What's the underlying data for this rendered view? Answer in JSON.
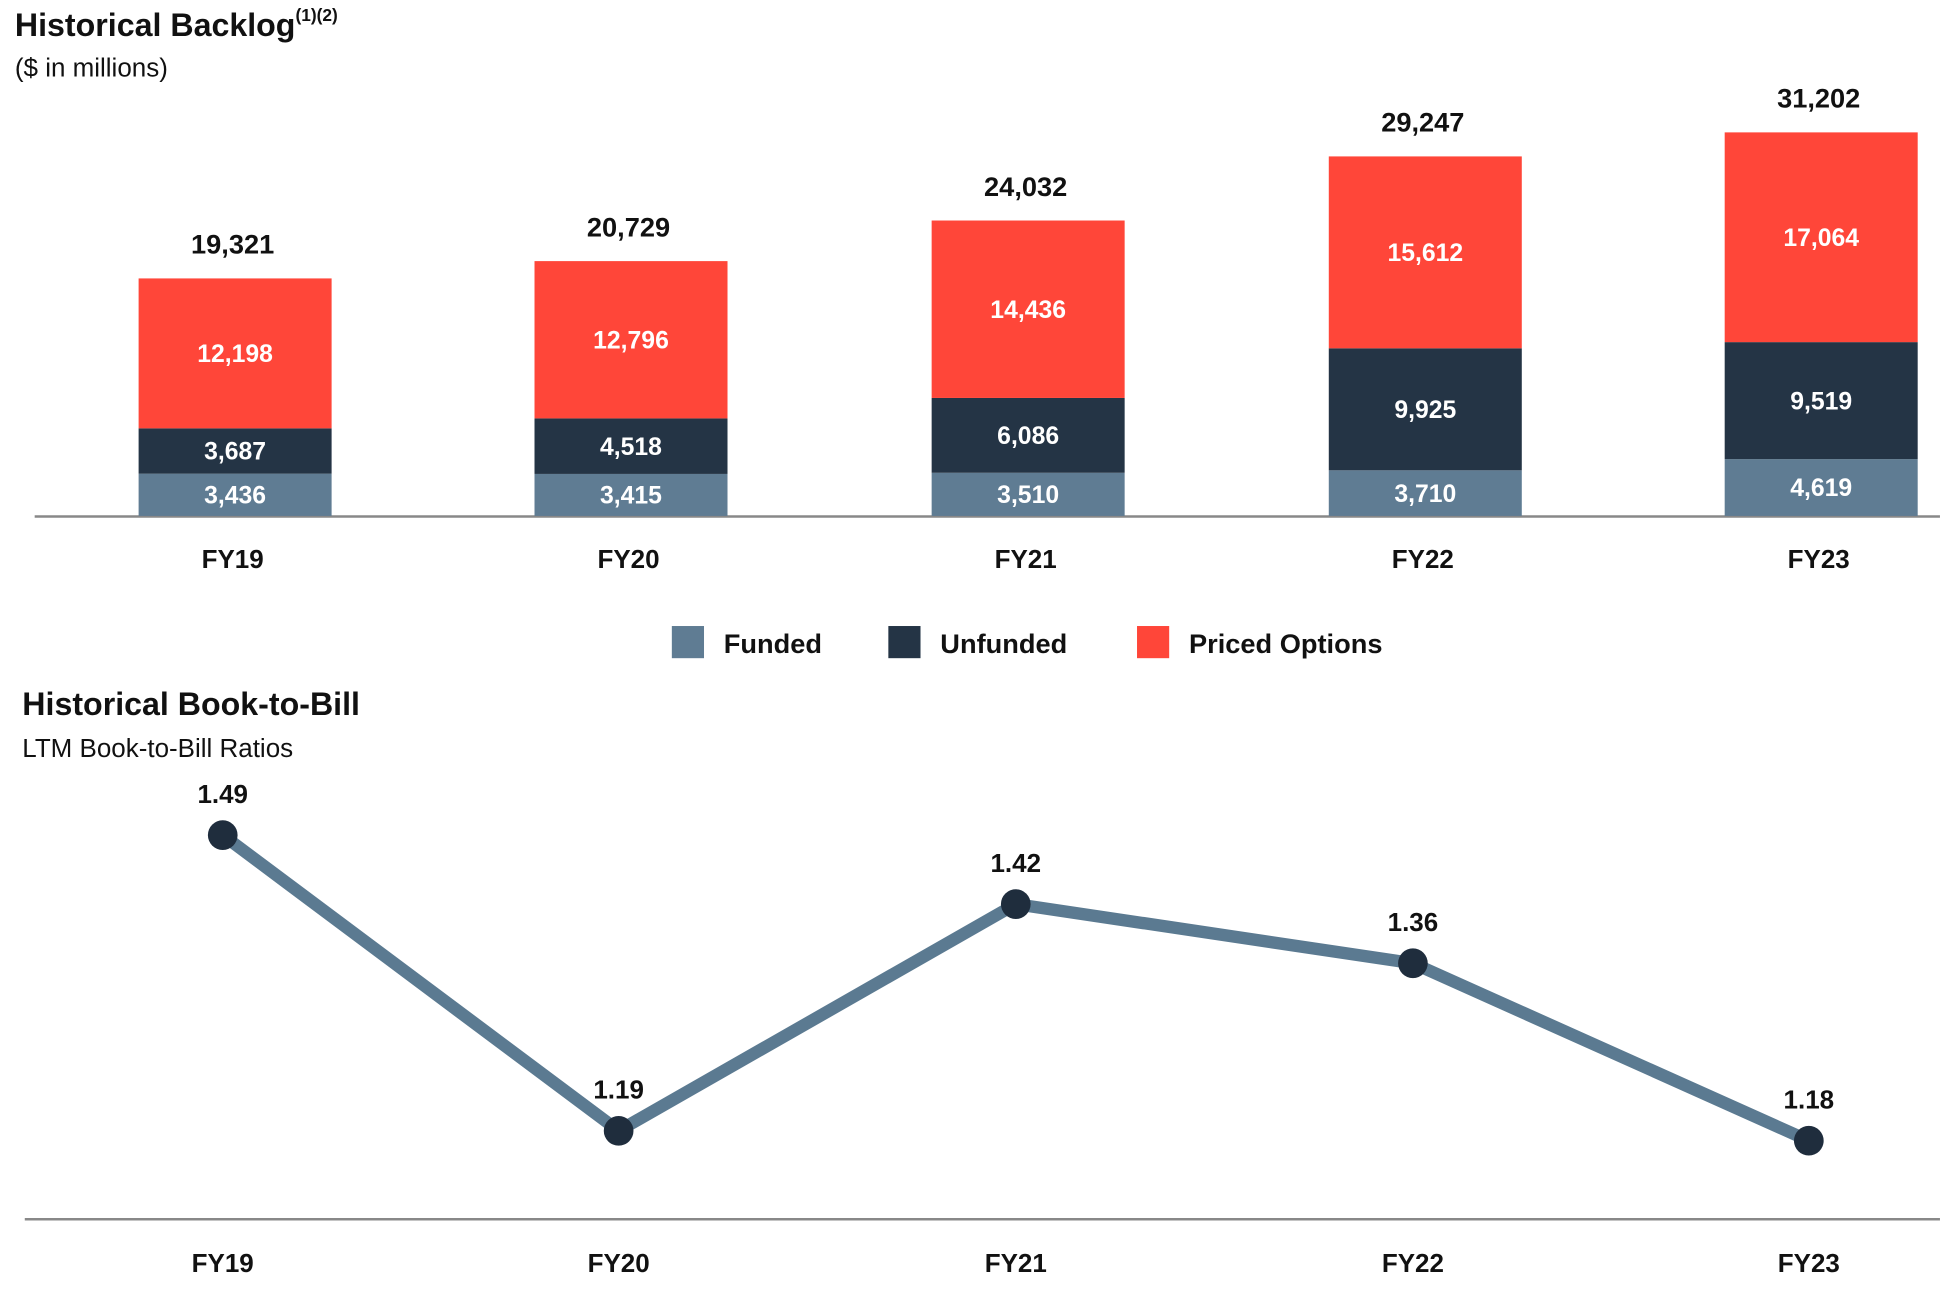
{
  "chart_data": [
    {
      "type": "stacked-bar",
      "title": "Historical Backlog",
      "title_superscript": "(1)(2)",
      "subtitle": "($ in millions)",
      "categories": [
        "FY19",
        "FY20",
        "FY21",
        "FY22",
        "FY23"
      ],
      "series": [
        {
          "name": "Funded",
          "color": "#5f7c93",
          "values": [
            3436,
            3415,
            3510,
            3710,
            4619
          ],
          "value_labels": [
            "3,436",
            "3,415",
            "3,510",
            "3,710",
            "4,619"
          ]
        },
        {
          "name": "Unfunded",
          "color": "#243445",
          "values": [
            3687,
            4518,
            6086,
            9925,
            9519
          ],
          "value_labels": [
            "3,687",
            "4,518",
            "6,086",
            "9,925",
            "9,519"
          ]
        },
        {
          "name": "Priced Options",
          "color": "#ff4639",
          "values": [
            12198,
            12796,
            14436,
            15612,
            17064
          ],
          "value_labels": [
            "12,198",
            "12,796",
            "14,436",
            "15,612",
            "17,064"
          ]
        }
      ],
      "totals": [
        19321,
        20729,
        24032,
        29247,
        31202
      ],
      "total_labels": [
        "19,321",
        "20,729",
        "24,032",
        "29,247",
        "31,202"
      ]
    },
    {
      "type": "line",
      "title": "Historical Book-to-Bill",
      "subtitle": "LTM Book-to-Bill Ratios",
      "categories": [
        "FY19",
        "FY20",
        "FY21",
        "FY22",
        "FY23"
      ],
      "values": [
        1.49,
        1.19,
        1.42,
        1.36,
        1.18
      ],
      "color": "#5b7a91",
      "marker_color": "#1f2d3d"
    }
  ]
}
